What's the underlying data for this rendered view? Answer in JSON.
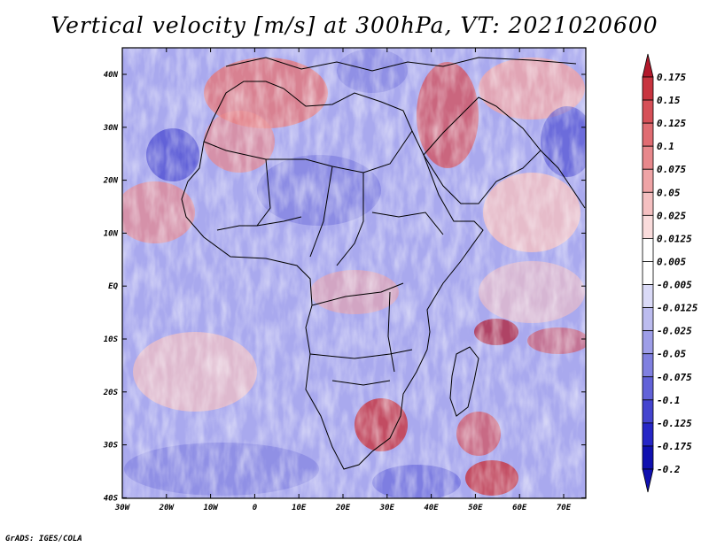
{
  "title": "Vertical velocity [m/s] at 300hPa, VT: 2021020600",
  "footer": "GrADS: IGES/COLA",
  "map": {
    "lat_labels": [
      "40N",
      "30N",
      "20N",
      "10N",
      "EQ",
      "10S",
      "20S",
      "30S",
      "40S"
    ],
    "lon_labels": [
      "30W",
      "20W",
      "10W",
      "0",
      "10E",
      "20E",
      "30E",
      "40E",
      "50E",
      "60E",
      "70E"
    ]
  },
  "colorbar": {
    "labels": [
      "0.175",
      "0.15",
      "0.125",
      "0.1",
      "0.075",
      "0.05",
      "0.025",
      "0.0125",
      "0.005",
      "-0.005",
      "-0.0125",
      "-0.025",
      "-0.05",
      "-0.075",
      "-0.1",
      "-0.125",
      "-0.175",
      "-0.2"
    ],
    "colors": [
      "#b2182b",
      "#c8343f",
      "#d65058",
      "#e06c72",
      "#e8888c",
      "#efa4a6",
      "#f5c0c1",
      "#fadcdc",
      "#ffffff",
      "#ffffff",
      "#dadaf7",
      "#bcbcef",
      "#9e9ee8",
      "#8080e0",
      "#6262d8",
      "#4444cf",
      "#2626c6",
      "#1010b0"
    ]
  }
}
